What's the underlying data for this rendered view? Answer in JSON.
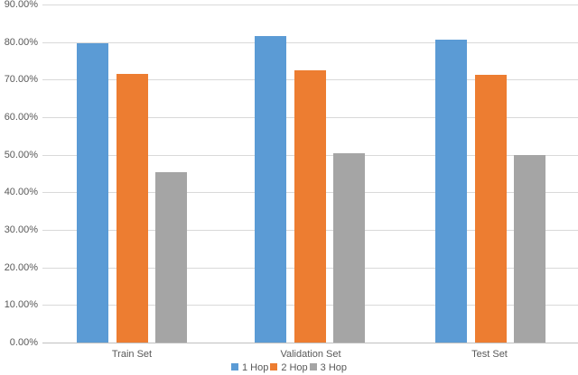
{
  "chart_data": {
    "type": "bar",
    "title": "",
    "xlabel": "",
    "ylabel": "",
    "categories": [
      "Train Set",
      "Validation Set",
      "Test Set"
    ],
    "series": [
      {
        "name": "1 Hop",
        "color": "#5b9bd5",
        "values": [
          79.8,
          81.6,
          80.7
        ]
      },
      {
        "name": "2 Hop",
        "color": "#ed7d31",
        "values": [
          71.6,
          72.5,
          71.4
        ]
      },
      {
        "name": "3 Hop",
        "color": "#a5a5a5",
        "values": [
          45.4,
          50.4,
          49.9
        ]
      }
    ],
    "ylim": [
      0,
      90
    ],
    "yticks": [
      "0.00%",
      "10.00%",
      "20.00%",
      "30.00%",
      "40.00%",
      "50.00%",
      "60.00%",
      "70.00%",
      "80.00%",
      "90.00%"
    ],
    "grid": true,
    "legend_position": "bottom"
  }
}
